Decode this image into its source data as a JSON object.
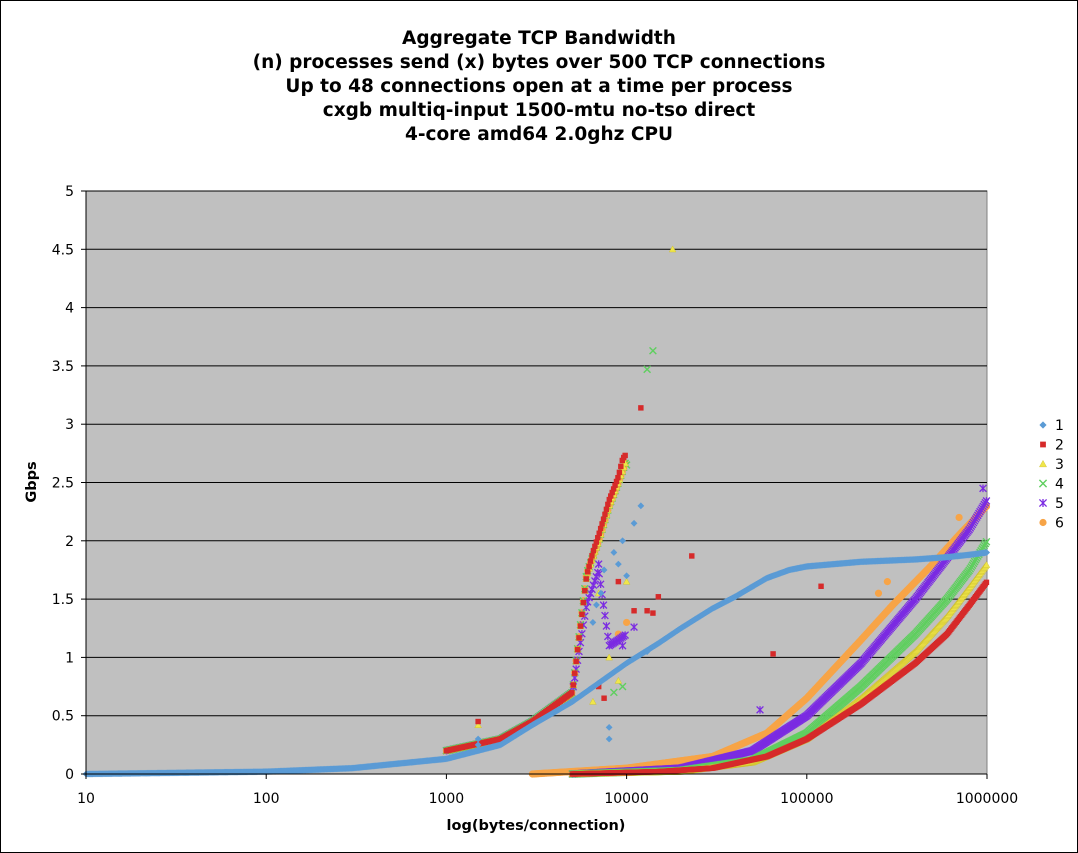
{
  "chart_data": {
    "type": "scatter",
    "title": [
      "Aggregate TCP Bandwidth",
      "(n) processes send (x) bytes over 500 TCP connections",
      "Up to 48 connections open at a time per process",
      "cxgb multiq-input 1500-mtu no-tso direct",
      "4-core amd64 2.0ghz CPU"
    ],
    "xlabel": "log(bytes/connection)",
    "ylabel": "Gbps",
    "xscale": "log",
    "xlim": [
      10,
      1000000
    ],
    "ylim": [
      0,
      5
    ],
    "x_ticks": [
      "10",
      "100",
      "1000",
      "10000",
      "100000",
      "1000000"
    ],
    "y_ticks": [
      "0",
      "0.5",
      "1",
      "1.5",
      "2",
      "2.5",
      "3",
      "3.5",
      "4",
      "4.5",
      "5"
    ],
    "grid": "horizontal",
    "legend_position": "right",
    "series": [
      {
        "name": "1",
        "marker": "diamond",
        "color": "#5b9bd5",
        "lower_curve": [
          [
            10,
            0
          ],
          [
            100,
            0.02
          ],
          [
            300,
            0.05
          ],
          [
            1000,
            0.13
          ],
          [
            2000,
            0.25
          ],
          [
            3000,
            0.42
          ],
          [
            5000,
            0.62
          ],
          [
            7000,
            0.78
          ],
          [
            10000,
            0.95
          ],
          [
            15000,
            1.12
          ],
          [
            20000,
            1.25
          ],
          [
            30000,
            1.42
          ],
          [
            40000,
            1.52
          ],
          [
            60000,
            1.68
          ],
          [
            80000,
            1.75
          ],
          [
            100000,
            1.78
          ],
          [
            200000,
            1.82
          ],
          [
            400000,
            1.84
          ],
          [
            600000,
            1.86
          ],
          [
            800000,
            1.88
          ],
          [
            1000000,
            1.9
          ]
        ],
        "upper_curve": [],
        "scatter": [
          [
            1500,
            0.3
          ],
          [
            1500,
            0.25
          ],
          [
            6500,
            1.3
          ],
          [
            6800,
            1.45
          ],
          [
            7200,
            1.55
          ],
          [
            7500,
            1.75
          ],
          [
            8000,
            0.4
          ],
          [
            8000,
            0.3
          ],
          [
            8500,
            1.9
          ],
          [
            9000,
            1.8
          ],
          [
            9500,
            2.0
          ],
          [
            10000,
            1.7
          ],
          [
            11000,
            2.15
          ],
          [
            12000,
            2.3
          ],
          [
            13000,
            1.05
          ]
        ]
      },
      {
        "name": "2",
        "marker": "square",
        "color": "#d62a2a",
        "lower_curve": [
          [
            5000,
            0
          ],
          [
            15000,
            0.02
          ],
          [
            30000,
            0.05
          ],
          [
            60000,
            0.15
          ],
          [
            100000,
            0.3
          ],
          [
            200000,
            0.6
          ],
          [
            400000,
            0.95
          ],
          [
            600000,
            1.2
          ],
          [
            800000,
            1.45
          ],
          [
            1000000,
            1.65
          ]
        ],
        "upper_curve": [
          [
            1000,
            0.2
          ],
          [
            2000,
            0.3
          ],
          [
            3000,
            0.45
          ],
          [
            5000,
            0.7
          ],
          [
            6000,
            1.7
          ],
          [
            6500,
            1.9
          ],
          [
            7000,
            2.05
          ],
          [
            7500,
            2.2
          ],
          [
            8000,
            2.35
          ],
          [
            8500,
            2.45
          ],
          [
            9000,
            2.55
          ],
          [
            9500,
            2.7
          ],
          [
            10000,
            2.75
          ]
        ],
        "scatter": [
          [
            1500,
            0.45
          ],
          [
            7000,
            0.75
          ],
          [
            7500,
            0.65
          ],
          [
            9000,
            1.65
          ],
          [
            11000,
            1.4
          ],
          [
            12000,
            3.14
          ],
          [
            13000,
            1.4
          ],
          [
            14000,
            1.38
          ],
          [
            15000,
            1.52
          ],
          [
            23000,
            1.87
          ],
          [
            65000,
            1.03
          ],
          [
            120000,
            1.61
          ]
        ]
      },
      {
        "name": "3",
        "marker": "triangle",
        "color": "#f0e64a",
        "lower_curve": [
          [
            5000,
            0
          ],
          [
            20000,
            0.02
          ],
          [
            50000,
            0.1
          ],
          [
            100000,
            0.3
          ],
          [
            200000,
            0.65
          ],
          [
            400000,
            1.05
          ],
          [
            600000,
            1.35
          ],
          [
            800000,
            1.6
          ],
          [
            1000000,
            1.8
          ]
        ],
        "upper_curve": [
          [
            1000,
            0.2
          ],
          [
            2000,
            0.3
          ],
          [
            3000,
            0.45
          ],
          [
            5000,
            0.7
          ],
          [
            6000,
            1.7
          ],
          [
            7000,
            2.0
          ],
          [
            8000,
            2.3
          ],
          [
            9000,
            2.5
          ],
          [
            10000,
            2.7
          ]
        ],
        "scatter": [
          [
            1500,
            0.42
          ],
          [
            6500,
            0.62
          ],
          [
            7000,
            1.55
          ],
          [
            8000,
            1.0
          ],
          [
            9000,
            0.8
          ],
          [
            10000,
            1.65
          ],
          [
            18000,
            4.5
          ]
        ]
      },
      {
        "name": "4",
        "marker": "x",
        "color": "#5fcf5f",
        "lower_curve": [
          [
            5000,
            0
          ],
          [
            20000,
            0.03
          ],
          [
            50000,
            0.12
          ],
          [
            100000,
            0.35
          ],
          [
            200000,
            0.75
          ],
          [
            400000,
            1.2
          ],
          [
            600000,
            1.5
          ],
          [
            800000,
            1.75
          ],
          [
            1000000,
            2.0
          ]
        ],
        "upper_curve": [
          [
            1000,
            0.2
          ],
          [
            2000,
            0.3
          ],
          [
            3000,
            0.45
          ],
          [
            5000,
            0.7
          ],
          [
            6000,
            1.72
          ],
          [
            7000,
            2.0
          ],
          [
            8000,
            2.3
          ],
          [
            9000,
            2.5
          ],
          [
            10000,
            2.7
          ]
        ],
        "scatter": [
          [
            8500,
            0.7
          ],
          [
            9500,
            0.75
          ],
          [
            10000,
            2.65
          ],
          [
            13000,
            3.47
          ],
          [
            14000,
            3.63
          ]
        ]
      },
      {
        "name": "5",
        "marker": "star",
        "color": "#7b2be2",
        "lower_curve": [
          [
            5000,
            0
          ],
          [
            20000,
            0.05
          ],
          [
            50000,
            0.2
          ],
          [
            100000,
            0.5
          ],
          [
            200000,
            0.95
          ],
          [
            400000,
            1.5
          ],
          [
            600000,
            1.85
          ],
          [
            800000,
            2.1
          ],
          [
            1000000,
            2.35
          ]
        ],
        "upper_curve": [
          [
            1000,
            0.2
          ],
          [
            2000,
            0.3
          ],
          [
            3000,
            0.45
          ],
          [
            5000,
            0.7
          ],
          [
            6000,
            1.45
          ],
          [
            7000,
            1.75
          ],
          [
            8000,
            1.1
          ],
          [
            9000,
            1.15
          ],
          [
            10000,
            1.2
          ]
        ],
        "scatter": [
          [
            7000,
            1.8
          ],
          [
            9500,
            1.1
          ],
          [
            11000,
            1.26
          ],
          [
            55000,
            0.55
          ],
          [
            300000,
            0.85
          ],
          [
            950000,
            2.45
          ]
        ]
      },
      {
        "name": "6",
        "marker": "circle",
        "color": "#f7a447",
        "lower_curve": [
          [
            3000,
            0
          ],
          [
            10000,
            0.05
          ],
          [
            30000,
            0.15
          ],
          [
            60000,
            0.35
          ],
          [
            100000,
            0.65
          ],
          [
            200000,
            1.15
          ],
          [
            300000,
            1.45
          ],
          [
            500000,
            1.8
          ],
          [
            700000,
            2.05
          ],
          [
            1000000,
            2.3
          ]
        ],
        "upper_curve": [
          [
            1000,
            0.2
          ],
          [
            2000,
            0.3
          ],
          [
            3000,
            0.45
          ],
          [
            5000,
            0.7
          ],
          [
            6000,
            1.72
          ],
          [
            7000,
            2.0
          ],
          [
            8000,
            2.3
          ],
          [
            9000,
            2.5
          ],
          [
            10000,
            2.7
          ]
        ],
        "scatter": [
          [
            9000,
            1.2
          ],
          [
            10000,
            1.3
          ],
          [
            250000,
            1.55
          ],
          [
            280000,
            1.65
          ],
          [
            700000,
            2.2
          ]
        ]
      }
    ]
  },
  "colors": {
    "plot_background": "#c0c0c0",
    "gridline": "#000000"
  }
}
